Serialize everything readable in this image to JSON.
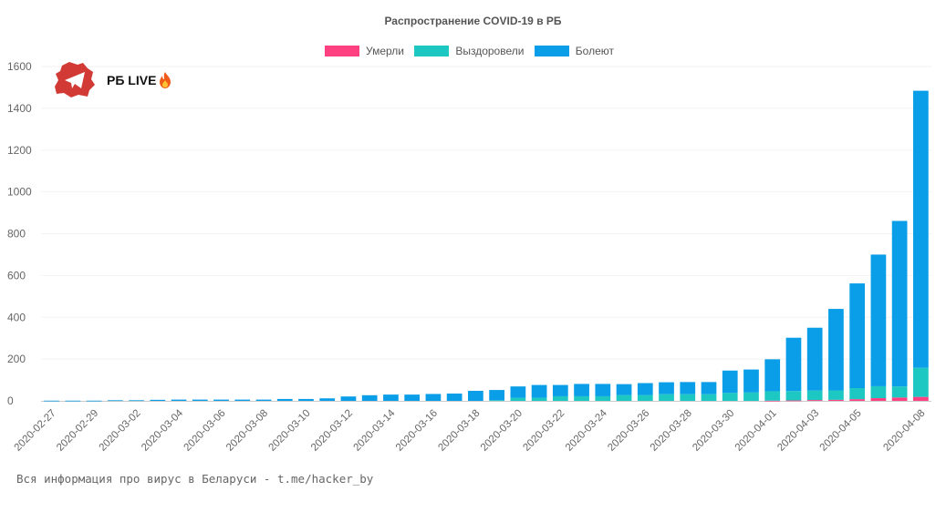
{
  "chart_data": {
    "type": "bar",
    "stacked": true,
    "title": "Распространение COVID-19 в РБ",
    "ylim": [
      0,
      1600
    ],
    "yticks": [
      0,
      200,
      400,
      600,
      800,
      1000,
      1200,
      1400,
      1600
    ],
    "grid": true,
    "legend_position": "top-center",
    "categories": [
      "2020-02-27",
      "2020-02-28",
      "2020-02-29",
      "2020-03-01",
      "2020-03-02",
      "2020-03-03",
      "2020-03-04",
      "2020-03-05",
      "2020-03-06",
      "2020-03-07",
      "2020-03-08",
      "2020-03-09",
      "2020-03-10",
      "2020-03-11",
      "2020-03-12",
      "2020-03-13",
      "2020-03-14",
      "2020-03-15",
      "2020-03-16",
      "2020-03-17",
      "2020-03-18",
      "2020-03-19",
      "2020-03-20",
      "2020-03-21",
      "2020-03-22",
      "2020-03-23",
      "2020-03-24",
      "2020-03-25",
      "2020-03-26",
      "2020-03-27",
      "2020-03-28",
      "2020-03-29",
      "2020-03-30",
      "2020-03-31",
      "2020-04-01",
      "2020-04-02",
      "2020-04-03",
      "2020-04-04",
      "2020-04-05",
      "2020-04-06",
      "2020-04-07",
      "2020-04-08"
    ],
    "tick_labels_shown": [
      "2020-02-27",
      "2020-02-29",
      "2020-03-02",
      "2020-03-04",
      "2020-03-06",
      "2020-03-08",
      "2020-03-10",
      "2020-03-12",
      "2020-03-14",
      "2020-03-16",
      "2020-03-18",
      "2020-03-20",
      "2020-03-22",
      "2020-03-24",
      "2020-03-26",
      "2020-03-28",
      "2020-03-30",
      "2020-04-01",
      "2020-04-03",
      "2020-04-05",
      "2020-04-08"
    ],
    "series": [
      {
        "name": "Умерли",
        "color": "#ff4081",
        "values": [
          0,
          0,
          0,
          0,
          0,
          0,
          0,
          0,
          0,
          0,
          0,
          0,
          0,
          0,
          0,
          0,
          0,
          0,
          0,
          0,
          0,
          0,
          0,
          0,
          0,
          0,
          0,
          0,
          0,
          0,
          0,
          0,
          0,
          0,
          1,
          2,
          4,
          5,
          8,
          13,
          16,
          19
        ]
      },
      {
        "name": "Выздоровели",
        "color": "#1ec8c2",
        "values": [
          0,
          0,
          0,
          0,
          0,
          0,
          0,
          0,
          0,
          0,
          0,
          0,
          0,
          0,
          0,
          0,
          0,
          0,
          0,
          0,
          0,
          3,
          15,
          15,
          22,
          22,
          22,
          28,
          28,
          32,
          32,
          32,
          38,
          40,
          45,
          45,
          45,
          45,
          53,
          57,
          53,
          139
        ]
      },
      {
        "name": "Болеют",
        "color": "#0b9ee8",
        "values": [
          1,
          1,
          1,
          3,
          3,
          5,
          6,
          6,
          6,
          6,
          6,
          9,
          9,
          12,
          21,
          27,
          30,
          30,
          33,
          35,
          48,
          49,
          54,
          61,
          54,
          59,
          59,
          52,
          57,
          57,
          58,
          58,
          107,
          110,
          153,
          255,
          301,
          390,
          501,
          630,
          792,
          1326
        ]
      }
    ]
  },
  "brand": {
    "name": "РБ LIVE",
    "logo_icon": "belarus-map-telegram-icon",
    "fire_icon": "fire-icon"
  },
  "footer": "Вся информация про вирус в Беларуси - t.me/hacker_by"
}
